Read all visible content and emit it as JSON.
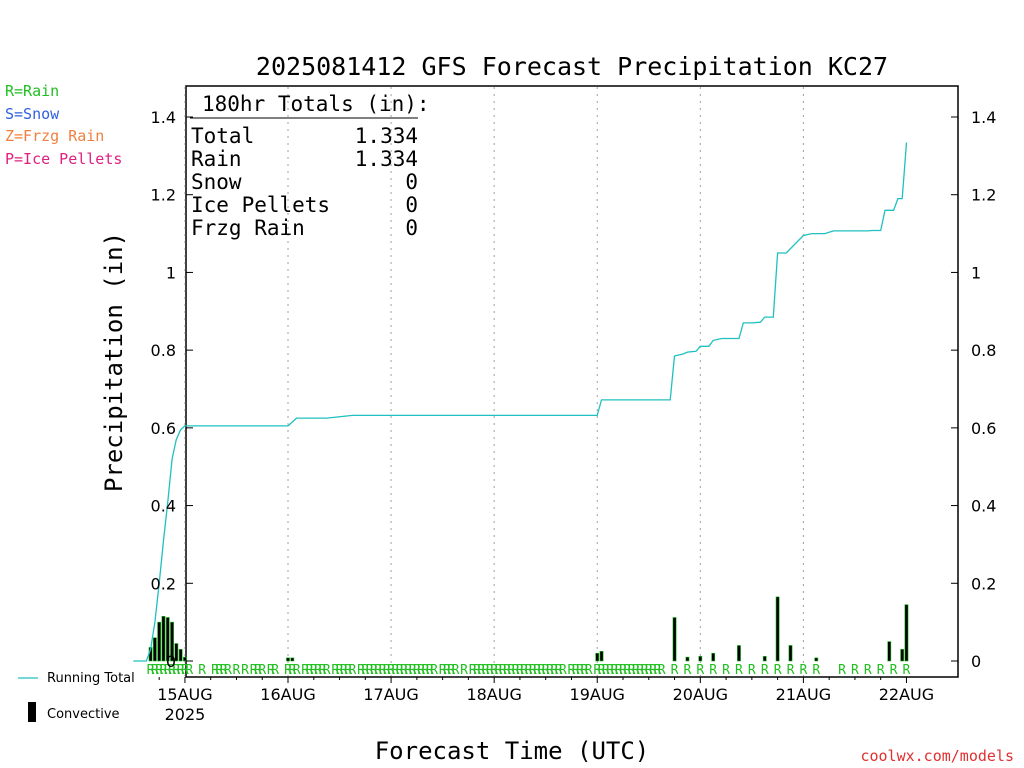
{
  "chart_data": {
    "type": "line",
    "title": "2025081412 GFS Forecast Precipitation KC27",
    "xlabel": "Forecast Time (UTC)",
    "ylabel": "Precipitation (in)",
    "ylim": [
      0,
      1.45
    ],
    "y_ticks": [
      0,
      0.2,
      0.4,
      0.6,
      0.8,
      1,
      1.2,
      1.4
    ],
    "y_tick_labels": [
      "0",
      "0.2",
      "0.4",
      "0.6",
      "0.8",
      "1",
      "1.2",
      "1.4"
    ],
    "xlim_hours": [
      0,
      180
    ],
    "x_ticks": [
      {
        "hour": 12,
        "label": "15AUG",
        "sublabel": "2025"
      },
      {
        "hour": 36,
        "label": "16AUG",
        "sublabel": ""
      },
      {
        "hour": 60,
        "label": "17AUG",
        "sublabel": ""
      },
      {
        "hour": 84,
        "label": "18AUG",
        "sublabel": ""
      },
      {
        "hour": 108,
        "label": "19AUG",
        "sublabel": ""
      },
      {
        "hour": 132,
        "label": "20AUG",
        "sublabel": ""
      },
      {
        "hour": 156,
        "label": "21AUG",
        "sublabel": ""
      },
      {
        "hour": 180,
        "label": "22AUG",
        "sublabel": ""
      }
    ],
    "grid": "vertical dotted",
    "series": [
      {
        "name": "Running Total",
        "color": "#20c0c0",
        "x": [
          0,
          3,
          4,
          5,
          6,
          7,
          8,
          9,
          10,
          11,
          12,
          36,
          37,
          38,
          45,
          51,
          108,
          109,
          125,
          126,
          128,
          129,
          131,
          132,
          134,
          135,
          137,
          138,
          141,
          142,
          144,
          146,
          147,
          149,
          150,
          152,
          156,
          158,
          161,
          163,
          171,
          172,
          174,
          175,
          177,
          178,
          179,
          180
        ],
        "y": [
          0,
          0,
          0.03,
          0.1,
          0.2,
          0.31,
          0.41,
          0.52,
          0.57,
          0.595,
          0.605,
          0.605,
          0.615,
          0.625,
          0.625,
          0.632,
          0.632,
          0.672,
          0.672,
          0.785,
          0.79,
          0.795,
          0.797,
          0.81,
          0.81,
          0.825,
          0.83,
          0.83,
          0.83,
          0.87,
          0.87,
          0.872,
          0.885,
          0.885,
          1.05,
          1.05,
          1.095,
          1.1,
          1.1,
          1.107,
          1.107,
          1.108,
          1.108,
          1.16,
          1.16,
          1.19,
          1.19,
          1.334
        ]
      },
      {
        "name": "Convective",
        "type": "bar",
        "color": "#000000",
        "x": [
          4,
          5,
          6,
          7,
          8,
          9,
          10,
          11,
          12,
          36,
          37,
          108,
          109,
          126,
          129,
          132,
          135,
          141,
          147,
          150,
          153,
          159,
          176,
          179,
          180
        ],
        "values": [
          0.035,
          0.06,
          0.1,
          0.115,
          0.112,
          0.1,
          0.045,
          0.03,
          0.01,
          0.008,
          0.008,
          0.02,
          0.025,
          0.112,
          0.01,
          0.012,
          0.02,
          0.04,
          0.012,
          0.165,
          0.04,
          0.008,
          0.05,
          0.03,
          0.145
        ]
      }
    ],
    "precip_type_marks": {
      "label": "R",
      "hours": [
        4,
        5,
        6,
        7,
        8,
        9,
        10,
        11,
        12,
        13,
        16,
        19,
        20,
        21,
        22,
        24,
        26,
        28,
        29,
        30,
        32,
        33,
        36,
        37,
        38,
        40,
        41,
        42,
        43,
        44,
        45,
        47,
        48,
        49,
        50,
        51,
        53,
        54,
        55,
        56,
        57,
        58,
        59,
        60,
        61,
        62,
        63,
        64,
        65,
        66,
        67,
        68,
        69,
        70,
        72,
        73,
        74,
        75,
        77,
        79,
        80,
        81,
        82,
        83,
        84,
        85,
        86,
        87,
        88,
        89,
        90,
        91,
        92,
        93,
        94,
        95,
        96,
        97,
        98,
        99,
        100,
        102,
        103,
        104,
        105,
        106,
        108,
        109,
        110,
        111,
        112,
        113,
        114,
        115,
        116,
        117,
        118,
        119,
        120,
        121,
        122,
        123,
        126,
        129,
        132,
        135,
        138,
        141,
        144,
        147,
        150,
        153,
        156,
        159,
        165,
        168,
        171,
        174,
        177,
        180
      ]
    }
  },
  "precip_legend": [
    {
      "text": "R=Rain",
      "color": "#20c020"
    },
    {
      "text": "S=Snow",
      "color": "#3060e0"
    },
    {
      "text": "Z=Frzg Rain",
      "color": "#f08040"
    },
    {
      "text": "P=Ice Pellets",
      "color": "#e02080"
    }
  ],
  "totals": {
    "header": "180hr Totals (in):",
    "rows": [
      {
        "label": "Total",
        "value": "1.334"
      },
      {
        "label": "Rain",
        "value": "1.334"
      },
      {
        "label": "Snow",
        "value": "0"
      },
      {
        "label": "Ice Pellets",
        "value": "0"
      },
      {
        "label": "Frzg Rain",
        "value": "0"
      }
    ]
  },
  "bottom_legend": {
    "running_total": "Running Total",
    "convective": "Convective"
  },
  "site_label": "coolwx.com/models"
}
